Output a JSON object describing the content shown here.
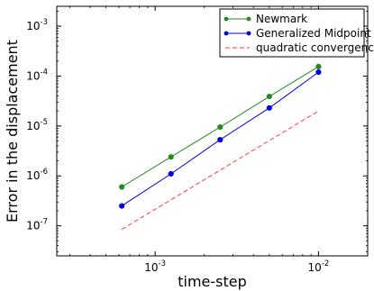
{
  "chart_data": {
    "type": "line",
    "title": "",
    "xlabel": "time-step",
    "ylabel": "Error in the displacement",
    "xscale": "log",
    "yscale": "log",
    "xlim": [
      0.00025,
      0.02
    ],
    "ylim": [
      2.5e-08,
      0.0025
    ],
    "grid": false,
    "legend_position": "top-right",
    "x_ticks": [
      {
        "value": 0.001,
        "base": "10",
        "exp": "-3"
      },
      {
        "value": 0.01,
        "base": "10",
        "exp": "-2"
      }
    ],
    "y_ticks": [
      {
        "value": 1e-07,
        "base": "10",
        "exp": "-7"
      },
      {
        "value": 1e-06,
        "base": "10",
        "exp": "-6"
      },
      {
        "value": 1e-05,
        "base": "10",
        "exp": "-5"
      },
      {
        "value": 0.0001,
        "base": "10",
        "exp": "-4"
      },
      {
        "value": 0.001,
        "base": "10",
        "exp": "-3"
      }
    ],
    "series": [
      {
        "name": "Newmark",
        "color": "#228b22",
        "style": "solid",
        "marker": "circle",
        "x": [
          0.000625,
          0.00125,
          0.0025,
          0.005,
          0.01
        ],
        "y": [
          6e-07,
          2.4e-06,
          9.5e-06,
          3.9e-05,
          0.000155
        ]
      },
      {
        "name": "Generalized Midpoint",
        "color": "#0000dd",
        "style": "solid",
        "marker": "circle",
        "x": [
          0.000625,
          0.00125,
          0.0025,
          0.005,
          0.01
        ],
        "y": [
          2.5e-07,
          1.1e-06,
          5.3e-06,
          2.3e-05,
          0.00012
        ]
      },
      {
        "name": "quadratic convergence",
        "color": "#ff3b3b",
        "style": "dashed",
        "marker": "none",
        "x": [
          0.000625,
          0.01
        ],
        "y": [
          8.5e-08,
          2e-05
        ]
      }
    ]
  }
}
